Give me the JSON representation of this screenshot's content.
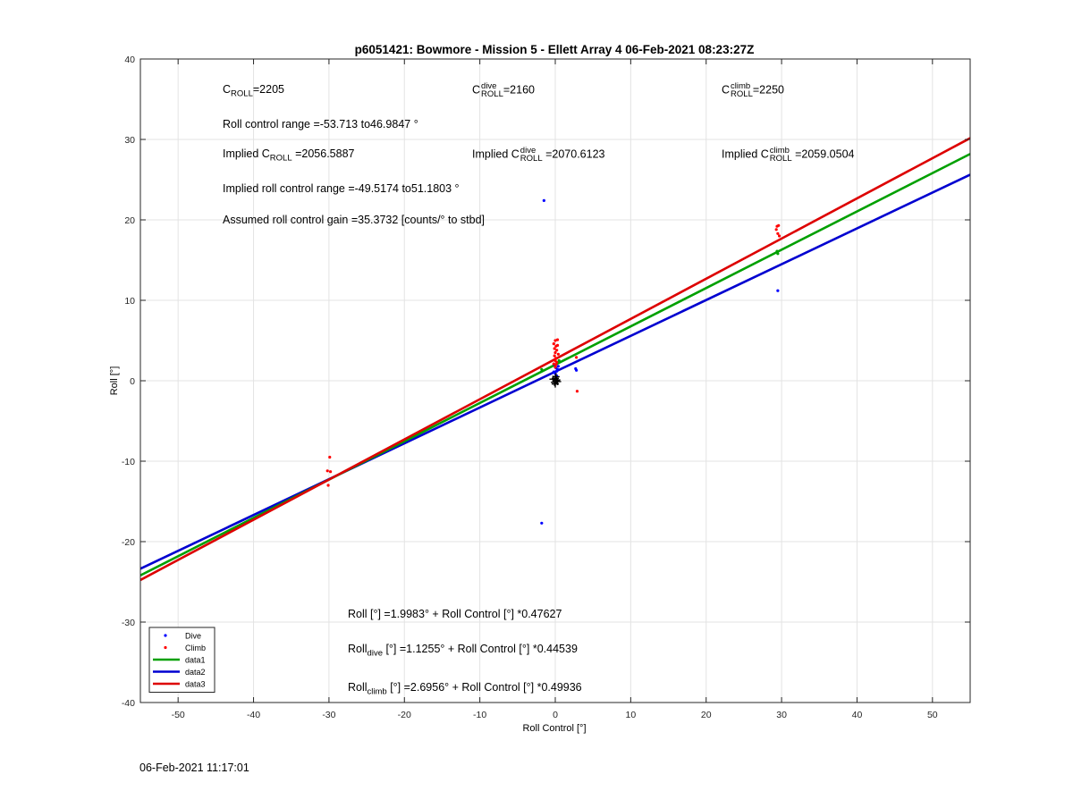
{
  "chart_data": {
    "type": "scatter",
    "title": "p6051421: Bowmore - Mission 5 - Ellett Array 4 06-Feb-2021 08:23:27Z",
    "xlabel": "Roll Control [°]",
    "ylabel": "Roll [°]",
    "xlim": [
      -55,
      55
    ],
    "ylim": [
      -40,
      40
    ],
    "xticks": [
      -50,
      -40,
      -30,
      -20,
      -10,
      0,
      10,
      20,
      30,
      40,
      50
    ],
    "yticks": [
      -40,
      -30,
      -20,
      -10,
      0,
      10,
      20,
      30,
      40
    ],
    "grid": true,
    "legend_position": "bottom-left",
    "legend": [
      {
        "label": "Dive",
        "kind": "marker",
        "color": "#0000ff"
      },
      {
        "label": "Climb",
        "kind": "marker",
        "color": "#ff0000"
      },
      {
        "label": "data1",
        "kind": "line",
        "color": "#00a000"
      },
      {
        "label": "data2",
        "kind": "line",
        "color": "#0000d0"
      },
      {
        "label": "data3",
        "kind": "line",
        "color": "#dd0000"
      }
    ],
    "lines": [
      {
        "name": "data1",
        "color": "#00a000",
        "intercept": 1.9983,
        "slope": 0.47627
      },
      {
        "name": "data2",
        "color": "#0000d0",
        "intercept": 1.1255,
        "slope": 0.44539
      },
      {
        "name": "data3",
        "color": "#dd0000",
        "intercept": 2.6956,
        "slope": 0.49936
      }
    ],
    "series": [
      {
        "name": "Dive",
        "color": "#0000ff",
        "points": [
          [
            -1.5,
            22.4
          ],
          [
            -1.8,
            -17.7
          ],
          [
            29.5,
            11.2
          ],
          [
            2.8,
            1.3
          ],
          [
            2.7,
            1.5
          ],
          [
            0.1,
            1.6
          ],
          [
            0.2,
            1.2
          ],
          [
            0.0,
            0.9
          ],
          [
            0.3,
            1.4
          ],
          [
            -0.1,
            2.0
          ],
          [
            0.2,
            0.6
          ],
          [
            0.4,
            1.8
          ],
          [
            -0.2,
            1.1
          ]
        ]
      },
      {
        "name": "Climb",
        "color": "#ff0000",
        "points": [
          [
            29.4,
            19.2
          ],
          [
            29.6,
            19.3
          ],
          [
            29.3,
            18.8
          ],
          [
            29.5,
            18.3
          ],
          [
            29.7,
            18.0
          ],
          [
            -29.9,
            -9.5
          ],
          [
            -30.2,
            -11.2
          ],
          [
            -29.8,
            -11.3
          ],
          [
            -30.1,
            -13.0
          ],
          [
            2.9,
            -1.3
          ],
          [
            0.0,
            5.0
          ],
          [
            0.3,
            5.1
          ],
          [
            -0.2,
            4.6
          ],
          [
            0.1,
            4.3
          ],
          [
            -0.1,
            4.0
          ],
          [
            0.2,
            3.8
          ],
          [
            0.0,
            3.5
          ],
          [
            -0.1,
            3.1
          ],
          [
            0.1,
            2.8
          ],
          [
            0.0,
            2.5
          ],
          [
            0.2,
            2.3
          ],
          [
            -0.2,
            2.1
          ],
          [
            0.1,
            2.0
          ],
          [
            0.0,
            1.7
          ],
          [
            0.4,
            3.3
          ],
          [
            0.3,
            4.4
          ],
          [
            2.8,
            2.9
          ]
        ]
      },
      {
        "name": "",
        "color": "#00a000",
        "points": [
          [
            29.4,
            16.1
          ],
          [
            29.5,
            15.8
          ],
          [
            -1.8,
            1.4
          ],
          [
            0.5,
            2.5
          ]
        ]
      },
      {
        "name": "",
        "color": "#000000",
        "points": [
          [
            0.0,
            0.3
          ],
          [
            0.1,
            0.0
          ],
          [
            -0.1,
            -0.2
          ],
          [
            0.2,
            0.1
          ],
          [
            -0.3,
            0.2
          ],
          [
            0.3,
            -0.1
          ],
          [
            0.0,
            -0.4
          ],
          [
            0.1,
            0.5
          ]
        ]
      }
    ]
  },
  "annotations": {
    "c_roll": {
      "base": "C",
      "sub": "ROLL",
      "value": "=2205"
    },
    "c_roll_dive": {
      "base": "C",
      "sup": "dive",
      "sub": "ROLL",
      "value": "=2160"
    },
    "c_roll_climb": {
      "base": "C",
      "sup": "climb",
      "sub": "ROLL",
      "value": "=2250"
    },
    "roll_control_range": "Roll control range =-53.713 to46.9847 °",
    "implied_c_roll": {
      "prefix": "Implied C",
      "sub": "ROLL",
      "value": " =2056.5887"
    },
    "implied_c_roll_dive": {
      "prefix": "Implied C",
      "sup": "dive",
      "sub": "ROLL",
      "value": " =2070.6123"
    },
    "implied_c_roll_climb": {
      "prefix": "Implied C",
      "sup": "climb",
      "sub": "ROLL",
      "value": " =2059.0504"
    },
    "implied_roll_range": "Implied roll control range =-49.5174 to51.1803 °",
    "gain": "Assumed roll control gain =35.3732 [counts/° to stbd]",
    "fit_all": "Roll [°] =1.9983° + Roll Control [°] *0.47627",
    "fit_dive": {
      "prefix": "Roll",
      "sub": "dive",
      "rest": " [°] =1.1255° + Roll Control [°] *0.44539"
    },
    "fit_climb": {
      "prefix": "Roll",
      "sub": "climb",
      "rest": " [°] =2.6956° + Roll Control [°] *0.49936"
    }
  },
  "footer_timestamp": "06-Feb-2021 11:17:01"
}
